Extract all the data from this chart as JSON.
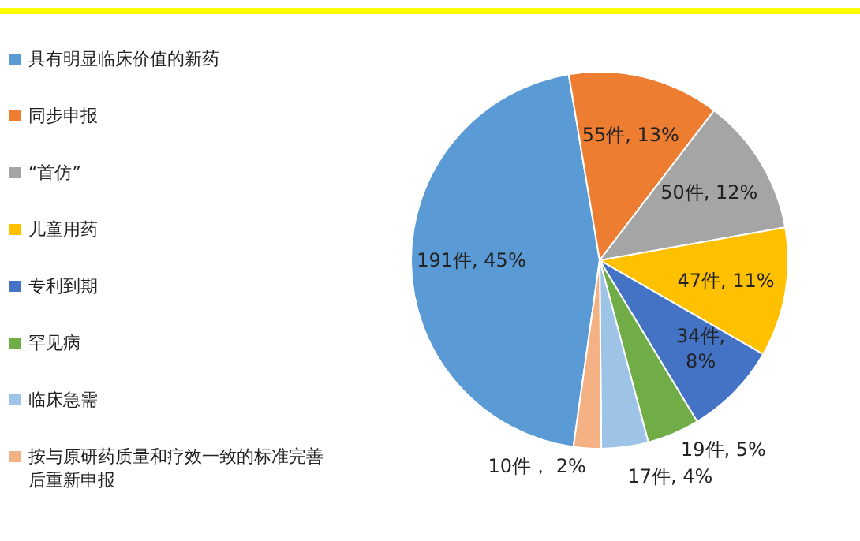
{
  "chart_data": {
    "type": "pie",
    "categories": [
      "具有明显临床价值的新药",
      "同步申报",
      "“首仿”",
      "儿童用药",
      "专利到期",
      "罕见病",
      "临床急需",
      "按与原研药质量和疗效一致的标准完善后重新申报"
    ],
    "values": [
      191,
      55,
      50,
      47,
      34,
      19,
      17,
      10
    ],
    "colors": [
      "#5b9bd5",
      "#ed7d31",
      "#a5a5a5",
      "#ffc000",
      "#4472c4",
      "#70ad47",
      "#9dc3e6",
      "#f4b183"
    ],
    "value_labels": [
      "191件, 45%",
      "55件, 13%",
      "50件, 12%",
      "47件, 11%",
      "34件, 8%",
      "19件, 5%",
      "17件, 4%",
      "10件， 2%"
    ],
    "legend": "left"
  }
}
